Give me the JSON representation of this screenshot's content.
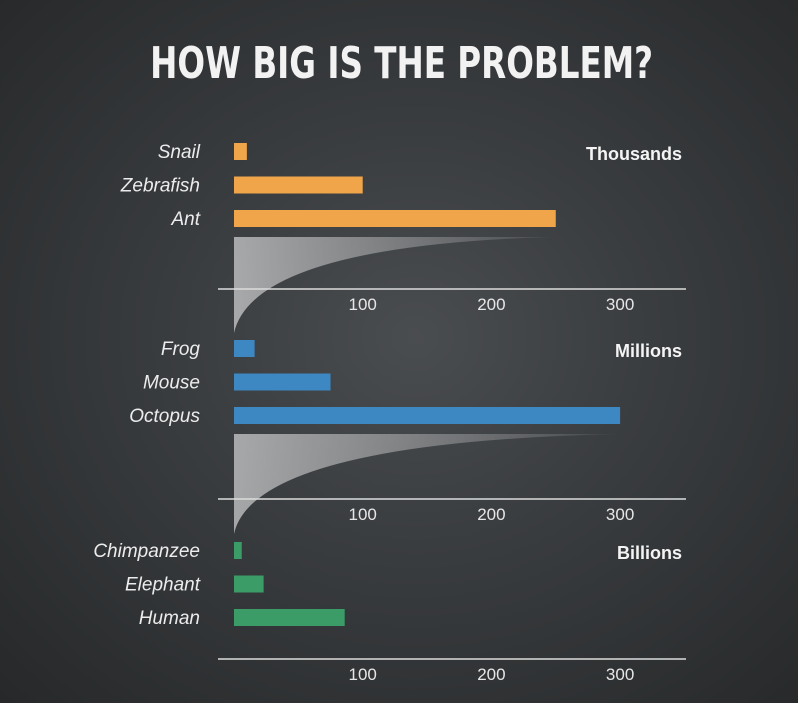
{
  "chart_data": {
    "title": "HOW BIG IS THE PROBLEM?",
    "type": "bar",
    "orientation": "horizontal",
    "xticks": [
      100,
      200,
      300
    ],
    "xlim": [
      0,
      350
    ],
    "panels": [
      {
        "unit": "Thousands",
        "color": "#f0a54a",
        "categories": [
          "Snail",
          "Zebrafish",
          "Ant"
        ],
        "values": [
          10,
          100,
          250
        ]
      },
      {
        "unit": "Millions",
        "color": "#3d87c2",
        "categories": [
          "Frog",
          "Mouse",
          "Octopus"
        ],
        "values": [
          16,
          75,
          300
        ]
      },
      {
        "unit": "Billions",
        "color": "#3b9c68",
        "categories": [
          "Chimpanzee",
          "Elephant",
          "Human"
        ],
        "values": [
          6,
          23,
          86
        ]
      }
    ]
  }
}
